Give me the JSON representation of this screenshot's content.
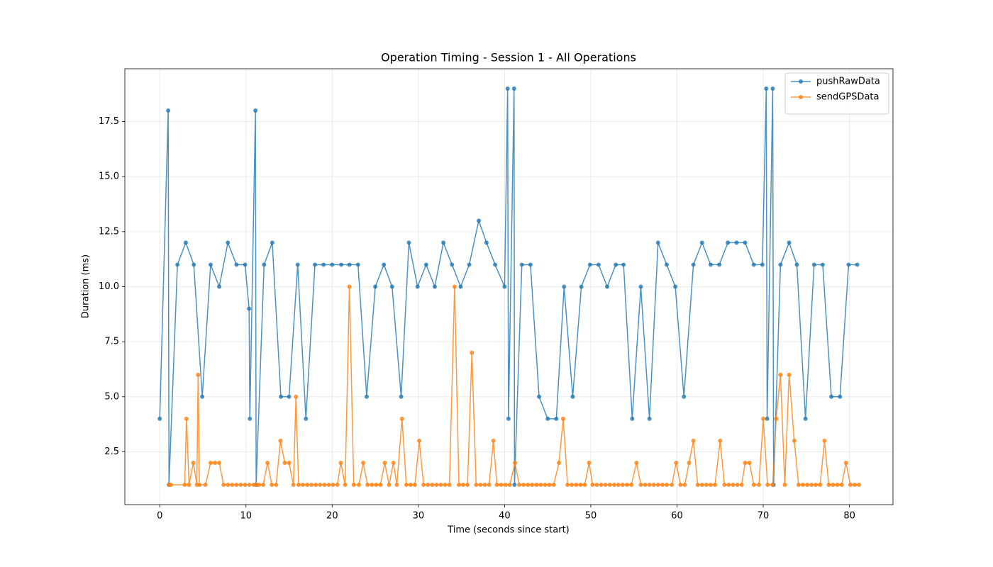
{
  "chart_data": {
    "type": "line",
    "title": "Operation Timing - Session 1 - All Operations",
    "xlabel": "Time (seconds since start)",
    "ylabel": "Duration (ms)",
    "xlim": [
      -4.05,
      85.05
    ],
    "ylim": [
      0.1,
      19.9
    ],
    "xticks": [
      0,
      10,
      20,
      30,
      40,
      50,
      60,
      70,
      80
    ],
    "yticks": [
      2.5,
      {
        "value": 5,
        "label": "5.0"
      },
      7.5,
      {
        "value": 10,
        "label": "10.0"
      },
      12.5,
      {
        "value": 15,
        "label": "15.0"
      },
      17.5
    ],
    "grid": true,
    "legend": "upper right",
    "series": [
      {
        "name": "pushRawData",
        "color": "#1f77b4",
        "x": [
          0,
          0.98,
          1.07,
          2.05,
          3.02,
          3.95,
          4.93,
          5.9,
          6.9,
          7.9,
          8.9,
          9.9,
          10.36,
          10.45,
          11.1,
          11.18,
          12.1,
          13.05,
          14.05,
          15,
          16,
          16.95,
          18,
          19,
          20,
          21.05,
          22,
          23,
          24,
          25,
          26,
          26.95,
          28,
          28.9,
          29.9,
          30.9,
          31.9,
          32.9,
          33.9,
          34.9,
          35.9,
          37,
          37.9,
          38.9,
          40,
          40.35,
          40.45,
          41.1,
          41.15,
          42,
          43,
          44,
          45,
          46,
          46.9,
          47.9,
          48.9,
          49.9,
          50.9,
          51.9,
          52.9,
          53.8,
          54.8,
          55.8,
          56.8,
          57.8,
          58.8,
          59.8,
          60.8,
          61.9,
          62.9,
          63.9,
          64.9,
          65.9,
          66.9,
          67.9,
          68.9,
          69.9,
          70.35,
          70.45,
          71.1,
          71.2,
          72,
          73,
          73.9,
          74.9,
          75.9,
          76.9,
          77.9,
          78.9,
          79.9,
          80.9
        ],
        "values": [
          4,
          18,
          1,
          11,
          12,
          11,
          5,
          11,
          10,
          12,
          11,
          11,
          9,
          4,
          18,
          1,
          11,
          12,
          5,
          5,
          11,
          4,
          11,
          11,
          11,
          11,
          11,
          11,
          5,
          10,
          11,
          10,
          5,
          12,
          10,
          11,
          10,
          12,
          11,
          10,
          11,
          13,
          12,
          11,
          10,
          19,
          4,
          19,
          1,
          11,
          11,
          5,
          4,
          4,
          10,
          5,
          10,
          11,
          11,
          10,
          11,
          11,
          4,
          10,
          4,
          12,
          11,
          10,
          5,
          11,
          12,
          11,
          11,
          12,
          12,
          12,
          11,
          11,
          19,
          4,
          19,
          1,
          11,
          12,
          11,
          4,
          11,
          11,
          5,
          5,
          11,
          11
        ]
      },
      {
        "name": "sendGPSData",
        "color": "#ff7f0e",
        "x": [
          1.07,
          1.3,
          2.9,
          3.1,
          3.4,
          3.9,
          4.3,
          4.45,
          4.6,
          5.3,
          5.9,
          6.4,
          6.9,
          7.4,
          7.9,
          8.4,
          8.9,
          9.4,
          9.9,
          10.4,
          10.9,
          11.2,
          11.5,
          12.0,
          12.5,
          13.0,
          13.5,
          14.0,
          14.5,
          15.0,
          15.5,
          15.8,
          16.1,
          16.6,
          17.1,
          17.6,
          18.1,
          18.6,
          19.1,
          19.6,
          20.1,
          20.6,
          21.0,
          21.5,
          22.0,
          22.5,
          23.1,
          23.6,
          24.1,
          24.6,
          25.1,
          25.6,
          26.1,
          26.6,
          27.1,
          27.5,
          28.1,
          28.6,
          29.1,
          29.6,
          30.1,
          30.6,
          31.1,
          31.6,
          32.1,
          32.6,
          33.1,
          33.6,
          34.2,
          34.7,
          35.2,
          35.7,
          36.2,
          36.7,
          37.2,
          37.7,
          38.2,
          38.7,
          39.1,
          39.6,
          40.1,
          40.6,
          41.2,
          41.7,
          42.2,
          42.7,
          43.2,
          43.7,
          44.2,
          44.7,
          45.2,
          45.7,
          46.3,
          46.8,
          47.3,
          47.8,
          48.3,
          48.8,
          49.3,
          49.8,
          50.2,
          50.7,
          51.2,
          51.7,
          52.2,
          52.7,
          53.2,
          53.7,
          54.2,
          54.7,
          55.3,
          55.8,
          56.3,
          56.8,
          57.3,
          57.8,
          58.3,
          58.8,
          59.4,
          59.9,
          60.4,
          60.9,
          61.4,
          61.9,
          62.4,
          62.9,
          63.4,
          63.9,
          64.4,
          65.0,
          65.5,
          66.0,
          66.5,
          67.0,
          67.5,
          67.9,
          68.4,
          68.9,
          69.5,
          70.0,
          70.5,
          71.1,
          71.5,
          72.0,
          72.5,
          73.0,
          73.6,
          74.1,
          74.6,
          75.1,
          75.6,
          76.1,
          76.6,
          77.1,
          77.6,
          78.1,
          78.6,
          79.1,
          79.6,
          80.1,
          80.6,
          81.1
        ],
        "values": [
          1,
          1,
          1,
          4,
          1,
          2,
          1,
          6,
          1,
          1,
          2,
          2,
          2,
          1,
          1,
          1,
          1,
          1,
          1,
          1,
          1,
          1,
          1,
          1,
          2,
          1,
          1,
          3,
          2,
          2,
          1,
          5,
          1,
          1,
          1,
          1,
          1,
          1,
          1,
          1,
          1,
          1,
          2,
          1,
          10,
          1,
          1,
          2,
          1,
          1,
          1,
          1,
          2,
          1,
          2,
          1,
          4,
          1,
          1,
          1,
          3,
          1,
          1,
          1,
          1,
          1,
          1,
          1,
          10,
          1,
          1,
          1,
          7,
          1,
          1,
          1,
          1,
          3,
          1,
          1,
          1,
          1,
          2,
          1,
          1,
          1,
          1,
          1,
          1,
          1,
          1,
          1,
          2,
          4,
          1,
          1,
          1,
          1,
          1,
          2,
          1,
          1,
          1,
          1,
          1,
          1,
          1,
          1,
          1,
          1,
          2,
          1,
          1,
          1,
          1,
          1,
          1,
          1,
          1,
          2,
          1,
          1,
          2,
          3,
          1,
          1,
          1,
          1,
          1,
          3,
          1,
          1,
          1,
          1,
          1,
          2,
          2,
          1,
          1,
          4,
          1,
          1,
          4,
          6,
          1,
          6,
          3,
          1,
          1,
          1,
          1,
          1,
          1,
          3,
          1,
          1,
          1,
          1,
          2,
          1,
          1,
          1
        ]
      }
    ]
  }
}
